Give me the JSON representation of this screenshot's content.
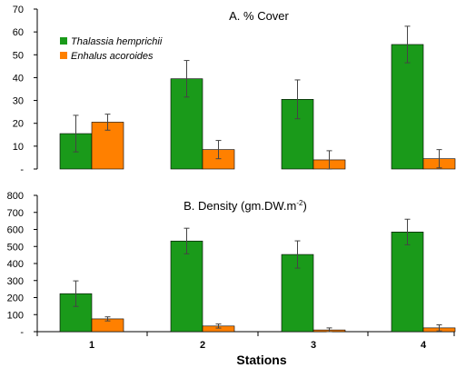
{
  "colors": {
    "thalassia": "#1a9a1a",
    "enhalus": "#ff8000",
    "axis": "#000000"
  },
  "chart_data": [
    {
      "type": "bar",
      "title": "A. % Cover",
      "categories": [
        "1",
        "2",
        "3",
        "4"
      ],
      "series": [
        {
          "name": "Thalassia hemprichii",
          "values": [
            15.5,
            39.5,
            30.5,
            54.5
          ],
          "errors": [
            8,
            8,
            8.5,
            8
          ]
        },
        {
          "name": "Enhalus acoroides",
          "values": [
            20.5,
            8.5,
            4,
            4.5
          ],
          "errors": [
            3.5,
            4,
            4,
            4
          ]
        }
      ],
      "yticks": [
        "-",
        "10",
        "20",
        "30",
        "40",
        "50",
        "60",
        "70"
      ],
      "ylim": [
        0,
        70
      ],
      "legend": "top-left"
    },
    {
      "type": "bar",
      "title_main": "B. Density (gm.DW.m",
      "title_sup": "-2",
      "title_end": ")",
      "categories": [
        "1",
        "2",
        "3",
        "4"
      ],
      "series": [
        {
          "name": "Thalassia hemprichii",
          "values": [
            223,
            532,
            453,
            585
          ],
          "errors": [
            75,
            75,
            80,
            75
          ]
        },
        {
          "name": "Enhalus acoroides",
          "values": [
            75,
            33,
            10,
            22
          ],
          "errors": [
            12,
            12,
            12,
            18
          ]
        }
      ],
      "yticks": [
        "-",
        "100",
        "200",
        "300",
        "400",
        "500",
        "600",
        "700",
        "800"
      ],
      "ylim": [
        0,
        800
      ],
      "xlabel": "Stations"
    }
  ]
}
